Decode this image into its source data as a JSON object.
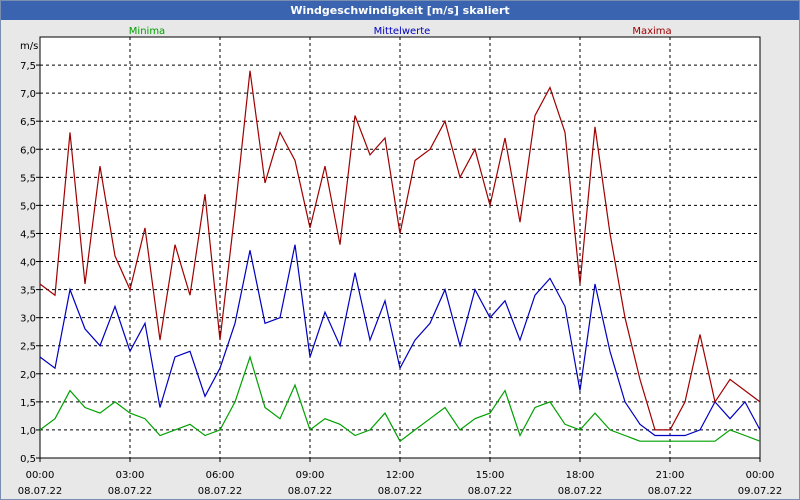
{
  "chart_data": {
    "type": "line",
    "title": "Windgeschwindigkeit [m/s] skaliert",
    "ylabel": "m/s",
    "ylim": [
      0.5,
      8.0
    ],
    "xlim": [
      "08.07.22 00:00",
      "09.07.22 00:00"
    ],
    "yticks": [
      "0,5",
      "1,0",
      "1,5",
      "2,0",
      "2,5",
      "3,0",
      "3,5",
      "4,0",
      "4,5",
      "5,0",
      "5,5",
      "6,0",
      "6,5",
      "7,0",
      "7,5"
    ],
    "xticks": [
      {
        "time": "00:00",
        "date": "08.07.22"
      },
      {
        "time": "03:00",
        "date": "08.07.22"
      },
      {
        "time": "06:00",
        "date": "08.07.22"
      },
      {
        "time": "09:00",
        "date": "08.07.22"
      },
      {
        "time": "12:00",
        "date": "08.07.22"
      },
      {
        "time": "15:00",
        "date": "08.07.22"
      },
      {
        "time": "18:00",
        "date": "08.07.22"
      },
      {
        "time": "21:00",
        "date": "08.07.22"
      },
      {
        "time": "00:00",
        "date": "09.07.22"
      }
    ],
    "grid": true,
    "legend_position": "top",
    "x_hours": [
      0,
      0.5,
      1,
      1.5,
      2,
      2.5,
      3,
      3.5,
      4,
      4.5,
      5,
      5.5,
      6,
      6.5,
      7,
      7.5,
      8,
      8.5,
      9,
      9.5,
      10,
      10.5,
      11,
      11.5,
      12,
      12.5,
      13,
      13.5,
      14,
      14.5,
      15,
      15.5,
      16,
      16.5,
      17,
      17.5,
      18,
      18.5,
      19,
      19.5,
      20,
      20.5,
      21,
      21.5,
      22,
      22.5,
      23,
      23.5,
      24
    ],
    "series": [
      {
        "name": "Minima",
        "color": "#00a000",
        "values": [
          1.0,
          1.2,
          1.7,
          1.4,
          1.3,
          1.5,
          1.3,
          1.2,
          0.9,
          1.0,
          1.1,
          0.9,
          1.0,
          1.5,
          2.3,
          1.4,
          1.2,
          1.8,
          1.0,
          1.2,
          1.1,
          0.9,
          1.0,
          1.3,
          0.8,
          1.0,
          1.2,
          1.4,
          1.0,
          1.2,
          1.3,
          1.7,
          0.9,
          1.4,
          1.5,
          1.1,
          1.0,
          1.3,
          1.0,
          0.9,
          0.8,
          0.8,
          0.8,
          0.8,
          0.8,
          0.8,
          1.0,
          0.9,
          0.8
        ]
      },
      {
        "name": "Mittelwerte",
        "color": "#0000c0",
        "values": [
          2.3,
          2.1,
          3.5,
          2.8,
          2.5,
          3.2,
          2.4,
          2.9,
          1.4,
          2.3,
          2.4,
          1.6,
          2.1,
          2.9,
          4.2,
          2.9,
          3.0,
          4.3,
          2.3,
          3.1,
          2.5,
          3.8,
          2.6,
          3.3,
          2.1,
          2.6,
          2.9,
          3.5,
          2.5,
          3.5,
          3.0,
          3.3,
          2.6,
          3.4,
          3.7,
          3.2,
          1.7,
          3.6,
          2.4,
          1.5,
          1.1,
          0.9,
          0.9,
          0.9,
          1.0,
          1.5,
          1.2,
          1.5,
          1.0
        ]
      },
      {
        "name": "Maxima",
        "color": "#a00000",
        "values": [
          3.6,
          3.4,
          6.3,
          3.6,
          5.7,
          4.1,
          3.5,
          4.6,
          2.6,
          4.3,
          3.4,
          5.2,
          2.6,
          4.9,
          7.4,
          5.4,
          6.3,
          5.8,
          4.6,
          5.7,
          4.3,
          6.6,
          5.9,
          6.2,
          4.5,
          5.8,
          6.0,
          6.5,
          5.5,
          6.0,
          5.0,
          6.2,
          4.7,
          6.6,
          7.1,
          6.3,
          3.6,
          6.4,
          4.5,
          3.0,
          1.9,
          1.0,
          1.0,
          1.5,
          2.7,
          1.5,
          1.9,
          1.7,
          1.5
        ]
      }
    ]
  }
}
